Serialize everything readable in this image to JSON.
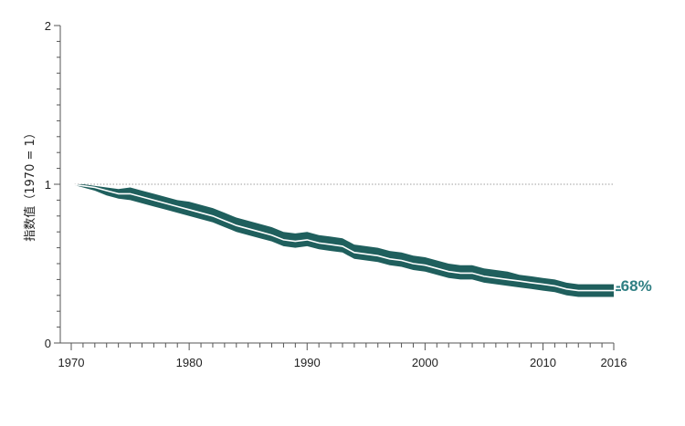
{
  "chart_data": {
    "type": "area",
    "ylabel": "指数值（1970 = 1）",
    "xlabel": "",
    "title": "",
    "xlim": [
      1970,
      2016
    ],
    "ylim": [
      0,
      2
    ],
    "x_ticks": [
      1970,
      1980,
      1990,
      2000,
      2010,
      2016
    ],
    "y_ticks": [
      0,
      1,
      2
    ],
    "reference_line": 1,
    "end_label": "-68%",
    "colors": {
      "band": "#1f5f5d",
      "line": "#ffffff",
      "label": "#2f7f83",
      "axis": "#555555",
      "reference": "#9e9e9e"
    },
    "series": [
      {
        "x": [
          1970,
          1971,
          1972,
          1973,
          1974,
          1975,
          1976,
          1977,
          1978,
          1979,
          1980,
          1981,
          1982,
          1983,
          1984,
          1985,
          1986,
          1987,
          1988,
          1989,
          1990,
          1991,
          1992,
          1993,
          1994,
          1995,
          1996,
          1997,
          1998,
          1999,
          2000,
          2001,
          2002,
          2003,
          2004,
          2005,
          2006,
          2007,
          2008,
          2009,
          2010,
          2011,
          2012,
          2013,
          2014,
          2015,
          2016
        ],
        "values": [
          1.0,
          0.99,
          0.98,
          0.96,
          0.94,
          0.94,
          0.92,
          0.9,
          0.88,
          0.86,
          0.84,
          0.82,
          0.8,
          0.77,
          0.74,
          0.72,
          0.7,
          0.68,
          0.65,
          0.64,
          0.65,
          0.63,
          0.62,
          0.61,
          0.57,
          0.56,
          0.55,
          0.53,
          0.52,
          0.5,
          0.49,
          0.47,
          0.45,
          0.44,
          0.44,
          0.42,
          0.41,
          0.4,
          0.39,
          0.38,
          0.37,
          0.36,
          0.34,
          0.33,
          0.33,
          0.33,
          0.33
        ],
        "upper": [
          1.0,
          1.0,
          0.99,
          0.98,
          0.97,
          0.98,
          0.96,
          0.94,
          0.92,
          0.9,
          0.89,
          0.87,
          0.85,
          0.82,
          0.79,
          0.77,
          0.75,
          0.73,
          0.7,
          0.69,
          0.7,
          0.68,
          0.67,
          0.66,
          0.62,
          0.61,
          0.6,
          0.58,
          0.57,
          0.55,
          0.54,
          0.52,
          0.5,
          0.49,
          0.49,
          0.47,
          0.46,
          0.45,
          0.43,
          0.42,
          0.41,
          0.4,
          0.38,
          0.37,
          0.37,
          0.37,
          0.37
        ],
        "lower": [
          1.0,
          0.98,
          0.96,
          0.93,
          0.91,
          0.9,
          0.88,
          0.86,
          0.84,
          0.82,
          0.8,
          0.78,
          0.76,
          0.73,
          0.7,
          0.68,
          0.66,
          0.64,
          0.61,
          0.6,
          0.61,
          0.59,
          0.58,
          0.57,
          0.53,
          0.52,
          0.51,
          0.49,
          0.48,
          0.46,
          0.45,
          0.43,
          0.41,
          0.4,
          0.4,
          0.38,
          0.37,
          0.36,
          0.35,
          0.34,
          0.33,
          0.32,
          0.3,
          0.29,
          0.29,
          0.29,
          0.29
        ]
      }
    ]
  }
}
